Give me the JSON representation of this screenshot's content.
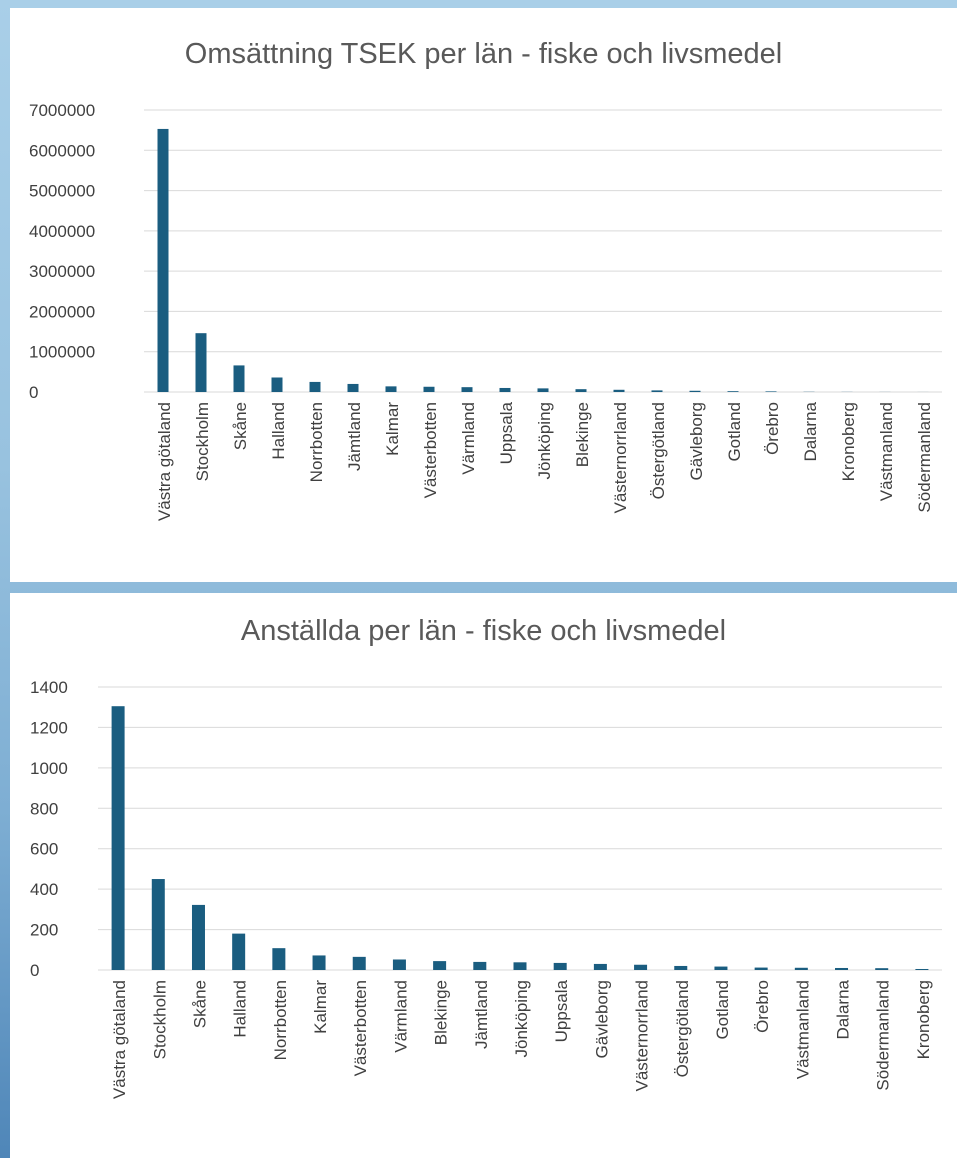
{
  "colors": {
    "bar": "#1a5d80",
    "grid": "#d9d9d9",
    "text": "#404040",
    "title": "#595959"
  },
  "chart_data": [
    {
      "type": "bar",
      "title": "Omsättning TSEK per län - fiske och livsmedel",
      "xlabel": "",
      "ylabel": "",
      "ylim": [
        0,
        7000000
      ],
      "yticks": [
        "0",
        "1000000",
        "2000000",
        "3000000",
        "4000000",
        "5000000",
        "6000000",
        "7000000"
      ],
      "grid": true,
      "legend": "none",
      "categories": [
        "Västra götaland",
        "Stockholm",
        "Skåne",
        "Halland",
        "Norrbotten",
        "Jämtland",
        "Kalmar",
        "Västerbotten",
        "Värmland",
        "Uppsala",
        "Jönköping",
        "Blekinge",
        "Västernorrland",
        "Östergötland",
        "Gävleborg",
        "Gotland",
        "Örebro",
        "Dalarna",
        "Kronoberg",
        "Västmanland",
        "Södermanland"
      ],
      "values": [
        6530000,
        1460000,
        660000,
        360000,
        250000,
        200000,
        140000,
        130000,
        120000,
        100000,
        90000,
        70000,
        55000,
        40000,
        30000,
        20000,
        15000,
        5000,
        3000,
        2000,
        1000
      ]
    },
    {
      "type": "bar",
      "title": "Anställda per län - fiske och livsmedel",
      "xlabel": "",
      "ylabel": "",
      "ylim": [
        0,
        1400
      ],
      "yticks": [
        "0",
        "200",
        "400",
        "600",
        "800",
        "1000",
        "1200",
        "1400"
      ],
      "grid": true,
      "legend": "none",
      "categories": [
        "Västra götaland",
        "Stockholm",
        "Skåne",
        "Halland",
        "Norrbotten",
        "Kalmar",
        "Västerbotten",
        "Värmland",
        "Blekinge",
        "Jämtland",
        "Jönköping",
        "Uppsala",
        "Gävleborg",
        "Västernorrland",
        "Östergötland",
        "Gotland",
        "Örebro",
        "Västmanland",
        "Dalarna",
        "Södermanland",
        "Kronoberg"
      ],
      "values": [
        1305,
        450,
        322,
        180,
        108,
        72,
        65,
        52,
        44,
        40,
        38,
        35,
        30,
        26,
        20,
        17,
        12,
        11,
        10,
        9,
        5
      ]
    }
  ]
}
